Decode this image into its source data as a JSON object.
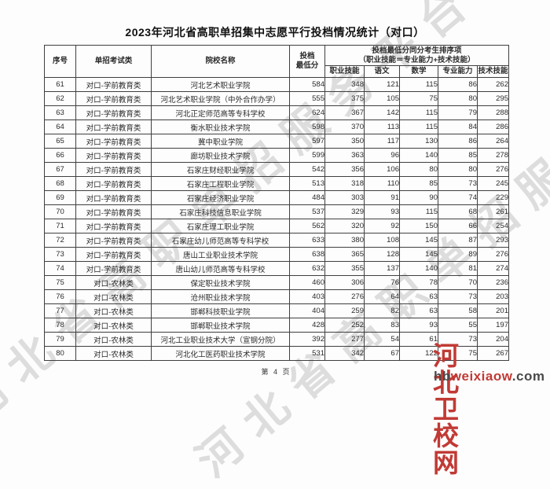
{
  "page": {
    "title": "2023年河北省高职单招集中志愿平行投档情况统计（对口）",
    "footer": "第 4 页"
  },
  "watermark": {
    "diagonal_text": "河北省高职单招服务平台",
    "site_name": "河北卫校网",
    "site_url_prefix": "hb",
    "site_url_mid": "weixiaow",
    "site_url_suffix": ".com",
    "brand_red": "#c13a35",
    "diagonal_gray": "#c8c8c8"
  },
  "table": {
    "headers": {
      "col_serial": "序号",
      "col_category": "单招考试类",
      "col_school": "院校名称",
      "col_min_score_line1": "投档",
      "col_min_score_line2": "最低分",
      "group_line1": "投档最低分同分考生排序项",
      "group_line2": "（职业技能＝专业能力+技术技能）",
      "sub": [
        "职业技能",
        "语文",
        "数学",
        "专业能力",
        "技术技能"
      ]
    },
    "rows": [
      {
        "no": "61",
        "category": "对口-学前教育类",
        "school": "河北艺术职业学院",
        "min": "584",
        "skill": "348",
        "chinese": "121",
        "math": "115",
        "ability": "86",
        "tech": "262"
      },
      {
        "no": "62",
        "category": "对口-学前教育类",
        "school": "河北艺术职业学院（中外合作办学）",
        "min": "555",
        "skill": "375",
        "chinese": "105",
        "math": "75",
        "ability": "80",
        "tech": "295"
      },
      {
        "no": "63",
        "category": "对口-学前教育类",
        "school": "河北正定师范高等专科学校",
        "min": "624",
        "skill": "367",
        "chinese": "142",
        "math": "115",
        "ability": "79",
        "tech": "288"
      },
      {
        "no": "64",
        "category": "对口-学前教育类",
        "school": "衡水职业技术学院",
        "min": "598",
        "skill": "370",
        "chinese": "113",
        "math": "115",
        "ability": "84",
        "tech": "286"
      },
      {
        "no": "65",
        "category": "对口-学前教育类",
        "school": "冀中职业学院",
        "min": "597",
        "skill": "350",
        "chinese": "117",
        "math": "130",
        "ability": "86",
        "tech": "264"
      },
      {
        "no": "66",
        "category": "对口-学前教育类",
        "school": "廊坊职业技术学院",
        "min": "599",
        "skill": "363",
        "chinese": "96",
        "math": "140",
        "ability": "85",
        "tech": "278"
      },
      {
        "no": "67",
        "category": "对口-学前教育类",
        "school": "石家庄财经职业学院",
        "min": "542",
        "skill": "356",
        "chinese": "106",
        "math": "80",
        "ability": "80",
        "tech": "276"
      },
      {
        "no": "68",
        "category": "对口-学前教育类",
        "school": "石家庄工程职业学院",
        "min": "513",
        "skill": "318",
        "chinese": "110",
        "math": "85",
        "ability": "73",
        "tech": "245"
      },
      {
        "no": "69",
        "category": "对口-学前教育类",
        "school": "石家庄经济职业学院",
        "min": "484",
        "skill": "303",
        "chinese": "91",
        "math": "90",
        "ability": "74",
        "tech": "229"
      },
      {
        "no": "70",
        "category": "对口-学前教育类",
        "school": "石家庄科技信息职业学院",
        "min": "537",
        "skill": "329",
        "chinese": "93",
        "math": "115",
        "ability": "68",
        "tech": "261"
      },
      {
        "no": "71",
        "category": "对口-学前教育类",
        "school": "石家庄理工职业学院",
        "min": "562",
        "skill": "320",
        "chinese": "92",
        "math": "150",
        "ability": "66",
        "tech": "254"
      },
      {
        "no": "72",
        "category": "对口-学前教育类",
        "school": "石家庄幼儿师范高等专科学校",
        "min": "633",
        "skill": "380",
        "chinese": "108",
        "math": "145",
        "ability": "87",
        "tech": "293"
      },
      {
        "no": "73",
        "category": "对口-学前教育类",
        "school": "唐山工业职业技术学院",
        "min": "638",
        "skill": "365",
        "chinese": "128",
        "math": "145",
        "ability": "89",
        "tech": "276"
      },
      {
        "no": "74",
        "category": "对口-学前教育类",
        "school": "唐山幼儿师范高等专科学校",
        "min": "632",
        "skill": "355",
        "chinese": "137",
        "math": "140",
        "ability": "81",
        "tech": "274"
      },
      {
        "no": "75",
        "category": "对口-农林类",
        "school": "保定职业技术学院",
        "min": "460",
        "skill": "306",
        "chinese": "76",
        "math": "78",
        "ability": "70",
        "tech": "236"
      },
      {
        "no": "76",
        "category": "对口-农林类",
        "school": "沧州职业技术学院",
        "min": "403",
        "skill": "276",
        "chinese": "64",
        "math": "63",
        "ability": "73",
        "tech": "203"
      },
      {
        "no": "77",
        "category": "对口-农林类",
        "school": "邯郸科技职业学院",
        "min": "404",
        "skill": "259",
        "chinese": "82",
        "math": "63",
        "ability": "58",
        "tech": "201"
      },
      {
        "no": "78",
        "category": "对口-农林类",
        "school": "邯郸职业技术学院",
        "min": "428",
        "skill": "252",
        "chinese": "83",
        "math": "93",
        "ability": "55",
        "tech": "197"
      },
      {
        "no": "79",
        "category": "对口-农林类",
        "school": "河北工业职业技术大学（宣钢分院）",
        "min": "392",
        "skill": "277",
        "chinese": "54",
        "math": "61",
        "ability": "73",
        "tech": "204"
      },
      {
        "no": "80",
        "category": "对口-农林类",
        "school": "河北化工医药职业技术学院",
        "min": "531",
        "skill": "342",
        "chinese": "67",
        "math": "122",
        "ability": "75",
        "tech": "267"
      }
    ]
  }
}
